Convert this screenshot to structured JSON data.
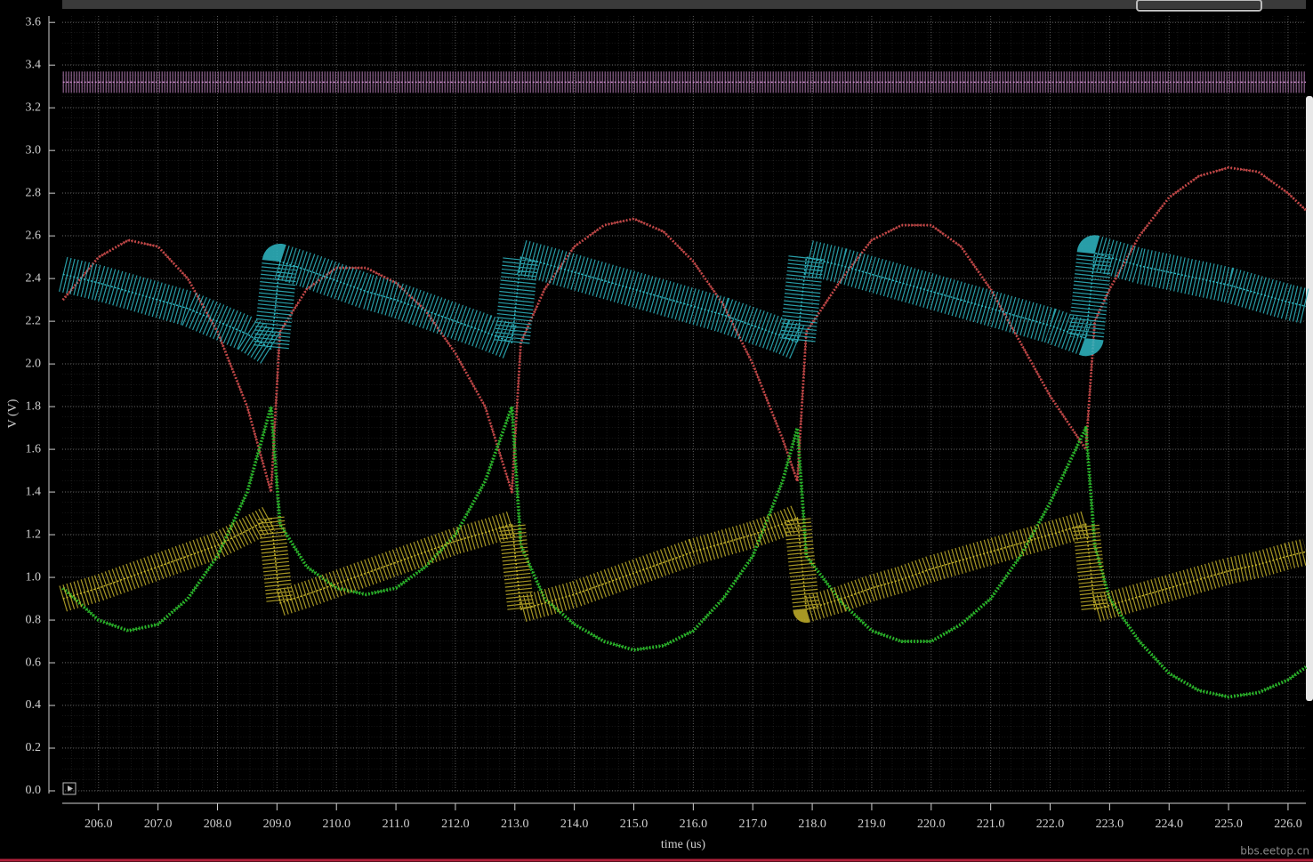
{
  "chart_data": {
    "type": "line",
    "xlabel": "time (us)",
    "ylabel": "V (V)",
    "watermark": "bbs.eetop.cn",
    "x": [
      205.4,
      206.0,
      206.5,
      207.0,
      207.5,
      208.0,
      208.5,
      208.9,
      209.05,
      209.5,
      210.0,
      210.5,
      211.0,
      211.5,
      212.0,
      212.5,
      212.95,
      213.1,
      213.5,
      214.0,
      214.5,
      215.0,
      215.5,
      216.0,
      216.5,
      217.0,
      217.5,
      217.75,
      217.9,
      218.5,
      219.0,
      219.5,
      220.0,
      220.5,
      221.0,
      221.5,
      222.0,
      222.6,
      222.75,
      223.0,
      223.5,
      224.0,
      224.5,
      225.0,
      225.5,
      226.0,
      226.3
    ],
    "series": [
      {
        "color": "#c88ac8",
        "values": [
          3.32,
          3.32,
          3.32,
          3.32,
          3.32,
          3.32,
          3.32,
          3.32,
          3.32,
          3.32,
          3.32,
          3.32,
          3.32,
          3.32,
          3.32,
          3.32,
          3.32,
          3.32,
          3.32,
          3.32,
          3.32,
          3.32,
          3.32,
          3.32,
          3.32,
          3.32,
          3.32,
          3.32,
          3.32,
          3.32,
          3.32,
          3.32,
          3.32,
          3.32,
          3.32,
          3.32,
          3.32,
          3.32,
          3.32,
          3.32,
          3.32,
          3.32,
          3.32,
          3.32,
          3.32,
          3.32,
          3.32
        ]
      },
      {
        "color": "#c24848",
        "values": [
          2.3,
          2.5,
          2.58,
          2.55,
          2.4,
          2.15,
          1.8,
          1.4,
          2.15,
          2.35,
          2.45,
          2.45,
          2.38,
          2.25,
          2.05,
          1.8,
          1.4,
          2.1,
          2.35,
          2.55,
          2.65,
          2.68,
          2.62,
          2.48,
          2.28,
          2.0,
          1.65,
          1.45,
          2.15,
          2.4,
          2.58,
          2.65,
          2.65,
          2.55,
          2.35,
          2.1,
          1.85,
          1.6,
          2.2,
          2.35,
          2.6,
          2.78,
          2.88,
          2.92,
          2.9,
          2.8,
          2.72
        ]
      },
      {
        "color": "#2fb8c4",
        "values": [
          2.42,
          2.38,
          2.34,
          2.3,
          2.26,
          2.2,
          2.14,
          2.07,
          2.48,
          2.44,
          2.39,
          2.34,
          2.3,
          2.25,
          2.2,
          2.15,
          2.1,
          2.5,
          2.47,
          2.43,
          2.39,
          2.35,
          2.31,
          2.27,
          2.23,
          2.18,
          2.13,
          2.1,
          2.5,
          2.46,
          2.42,
          2.38,
          2.34,
          2.3,
          2.26,
          2.22,
          2.18,
          2.12,
          2.52,
          2.5,
          2.46,
          2.43,
          2.4,
          2.37,
          2.33,
          2.29,
          2.27
        ]
      },
      {
        "color": "#2bb52b",
        "values": [
          0.95,
          0.8,
          0.75,
          0.78,
          0.9,
          1.1,
          1.4,
          1.8,
          1.25,
          1.05,
          0.95,
          0.92,
          0.95,
          1.05,
          1.2,
          1.45,
          1.8,
          1.15,
          0.9,
          0.78,
          0.7,
          0.66,
          0.68,
          0.75,
          0.9,
          1.1,
          1.45,
          1.7,
          1.1,
          0.88,
          0.75,
          0.7,
          0.7,
          0.78,
          0.9,
          1.1,
          1.35,
          1.7,
          1.15,
          0.9,
          0.7,
          0.55,
          0.47,
          0.44,
          0.46,
          0.52,
          0.58
        ]
      },
      {
        "color": "#c4b22a",
        "values": [
          0.9,
          0.95,
          1.0,
          1.05,
          1.1,
          1.15,
          1.22,
          1.28,
          0.88,
          0.92,
          0.97,
          1.02,
          1.07,
          1.12,
          1.17,
          1.21,
          1.25,
          0.85,
          0.88,
          0.92,
          0.97,
          1.02,
          1.07,
          1.12,
          1.16,
          1.2,
          1.25,
          1.28,
          0.85,
          0.9,
          0.95,
          0.99,
          1.04,
          1.08,
          1.12,
          1.16,
          1.2,
          1.25,
          0.85,
          0.87,
          0.91,
          0.95,
          0.99,
          1.03,
          1.06,
          1.1,
          1.12
        ]
      }
    ],
    "xlim": [
      205.39,
      226.3
    ],
    "xticks": [
      {
        "value": 206,
        "label": "206.0"
      },
      {
        "value": 207,
        "label": "207.0"
      },
      {
        "value": 208,
        "label": "208.0"
      },
      {
        "value": 209,
        "label": "209.0"
      },
      {
        "value": 210,
        "label": "210.0"
      },
      {
        "value": 211,
        "label": "211.0"
      },
      {
        "value": 212,
        "label": "212.0"
      },
      {
        "value": 213,
        "label": "213.0"
      },
      {
        "value": 214,
        "label": "214.0"
      },
      {
        "value": 215,
        "label": "215.0"
      },
      {
        "value": 216,
        "label": "216.0"
      },
      {
        "value": 217,
        "label": "217.0"
      },
      {
        "value": 218,
        "label": "218.0"
      },
      {
        "value": 219,
        "label": "219.0"
      },
      {
        "value": 220,
        "label": "220.0"
      },
      {
        "value": 221,
        "label": "221.0"
      },
      {
        "value": 222,
        "label": "222.0"
      },
      {
        "value": 223,
        "label": "223.0"
      },
      {
        "value": 224,
        "label": "224.0"
      },
      {
        "value": 225,
        "label": "225.0"
      },
      {
        "value": 226,
        "label": "226.0"
      }
    ],
    "ylim": [
      0,
      3.63
    ],
    "yticks": [
      {
        "value": 0,
        "label": "0.0"
      },
      0.2,
      0.4,
      0.6,
      0.8,
      {
        "value": 1,
        "label": "1.0"
      },
      1.2,
      1.4,
      1.6,
      1.8,
      {
        "value": 2,
        "label": "2.0"
      },
      2.2,
      2.4,
      2.6,
      2.8,
      {
        "value": 3,
        "label": "3.0"
      },
      3.2,
      3.4,
      3.6
    ],
    "grid": true
  }
}
